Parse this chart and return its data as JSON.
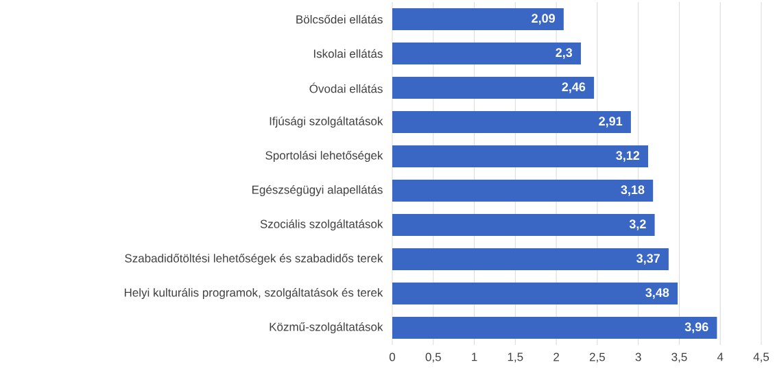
{
  "chart_data": {
    "type": "bar",
    "orientation": "horizontal",
    "categories": [
      "Bölcsődei ellátás",
      "Iskolai ellátás",
      "Óvodai ellátás",
      "Ifjúsági szolgáltatások",
      "Sportolási lehetőségek",
      "Egészségügyi alapellátás",
      "Szociális szolgáltatások",
      "Szabadidőtöltési lehetőségek és szabadidős terek",
      "Helyi kulturális programok, szolgáltatások és terek",
      "Közmű-szolgáltatások"
    ],
    "values": [
      2.09,
      2.3,
      2.46,
      2.91,
      3.12,
      3.18,
      3.2,
      3.37,
      3.48,
      3.96
    ],
    "value_labels": [
      "2,09",
      "2,3",
      "2,46",
      "2,91",
      "3,12",
      "3,18",
      "3,2",
      "3,37",
      "3,48",
      "3,96"
    ],
    "color": "#3a66c4",
    "xlim": [
      0,
      4.5
    ],
    "xticks": [
      0,
      {
        "value": 0.5,
        "label": "0,5"
      },
      1,
      {
        "value": 1.5,
        "label": "1,5"
      },
      2,
      {
        "value": 2.5,
        "label": "2,5"
      },
      3,
      {
        "value": 3.5,
        "label": "3,5"
      },
      4,
      {
        "value": 4.5,
        "label": "4,5"
      }
    ],
    "grid": "x"
  }
}
